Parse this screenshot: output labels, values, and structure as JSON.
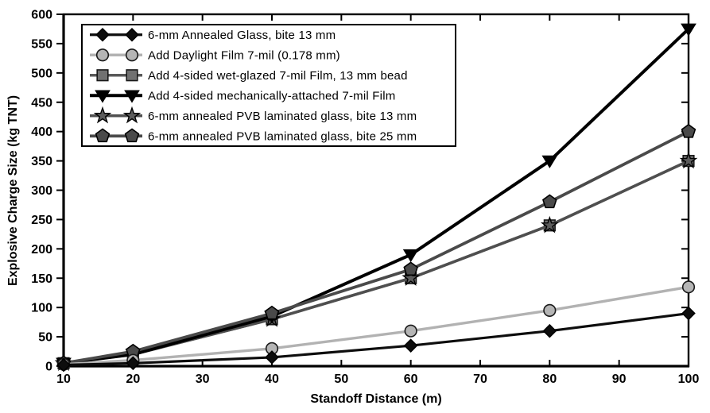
{
  "chart_data": {
    "type": "line",
    "title": "",
    "xlabel": "Standoff Distance (m)",
    "ylabel": "Explosive Charge Size (kg TNT)",
    "xlim": [
      10,
      100
    ],
    "ylim": [
      0,
      600
    ],
    "x_ticks": [
      10,
      20,
      30,
      40,
      50,
      60,
      70,
      80,
      90,
      100
    ],
    "y_ticks": [
      0,
      50,
      100,
      150,
      200,
      250,
      300,
      350,
      400,
      450,
      500,
      550,
      600
    ],
    "grid": false,
    "legend_position": "top-left-inside",
    "x": [
      10,
      20,
      40,
      60,
      80,
      100
    ],
    "series": [
      {
        "name": "6-mm Annealed Glass, bite 13 mm",
        "marker": "diamond",
        "line_color": "#0d0d0d",
        "marker_fill": "#0d0d0d",
        "marker_edge": "#000000",
        "line_width": 3.2,
        "values": [
          2,
          5,
          15,
          35,
          60,
          90
        ]
      },
      {
        "name": "Add Daylight Film 7-mil (0.178 mm)",
        "marker": "circle",
        "line_color": "#b2b2b2",
        "marker_fill": "#b5b5b5",
        "marker_edge": "#1a1a1a",
        "line_width": 3.4,
        "values": [
          3,
          10,
          30,
          60,
          95,
          135
        ]
      },
      {
        "name": "Add 4-sided wet-glazed 7-mil Film, 13 mm bead",
        "marker": "square",
        "line_color": "#595959",
        "marker_fill": "#717171",
        "marker_edge": "#1a1a1a",
        "line_width": 3.6,
        "values": [
          5,
          20,
          80,
          150,
          240,
          350
        ]
      },
      {
        "name": "Add 4-sided mechanically-attached 7-mil Film",
        "marker": "triangle-down",
        "line_color": "#000000",
        "marker_fill": "#000000",
        "marker_edge": "#000000",
        "line_width": 4.0,
        "values": [
          5,
          20,
          85,
          190,
          350,
          575
        ]
      },
      {
        "name": "6-mm annealed PVB laminated glass, bite 13 mm",
        "marker": "star",
        "line_color": "#4f4f4f",
        "marker_fill": "#5c5c5c",
        "marker_edge": "#000000",
        "line_width": 3.4,
        "values": [
          5,
          20,
          80,
          150,
          240,
          350
        ]
      },
      {
        "name": "6-mm annealed PVB laminated glass, bite 25 mm",
        "marker": "pentagon",
        "line_color": "#4a4a4a",
        "marker_fill": "#4a4a4a",
        "marker_edge": "#000000",
        "line_width": 3.8,
        "values": [
          5,
          25,
          90,
          165,
          280,
          400
        ]
      }
    ],
    "draw_order": [
      2,
      4,
      3,
      5,
      1,
      0
    ]
  },
  "colors": {
    "background": "#ffffff",
    "axis": "#000000",
    "legend_border": "#000000",
    "legend_background": "#ffffff"
  }
}
